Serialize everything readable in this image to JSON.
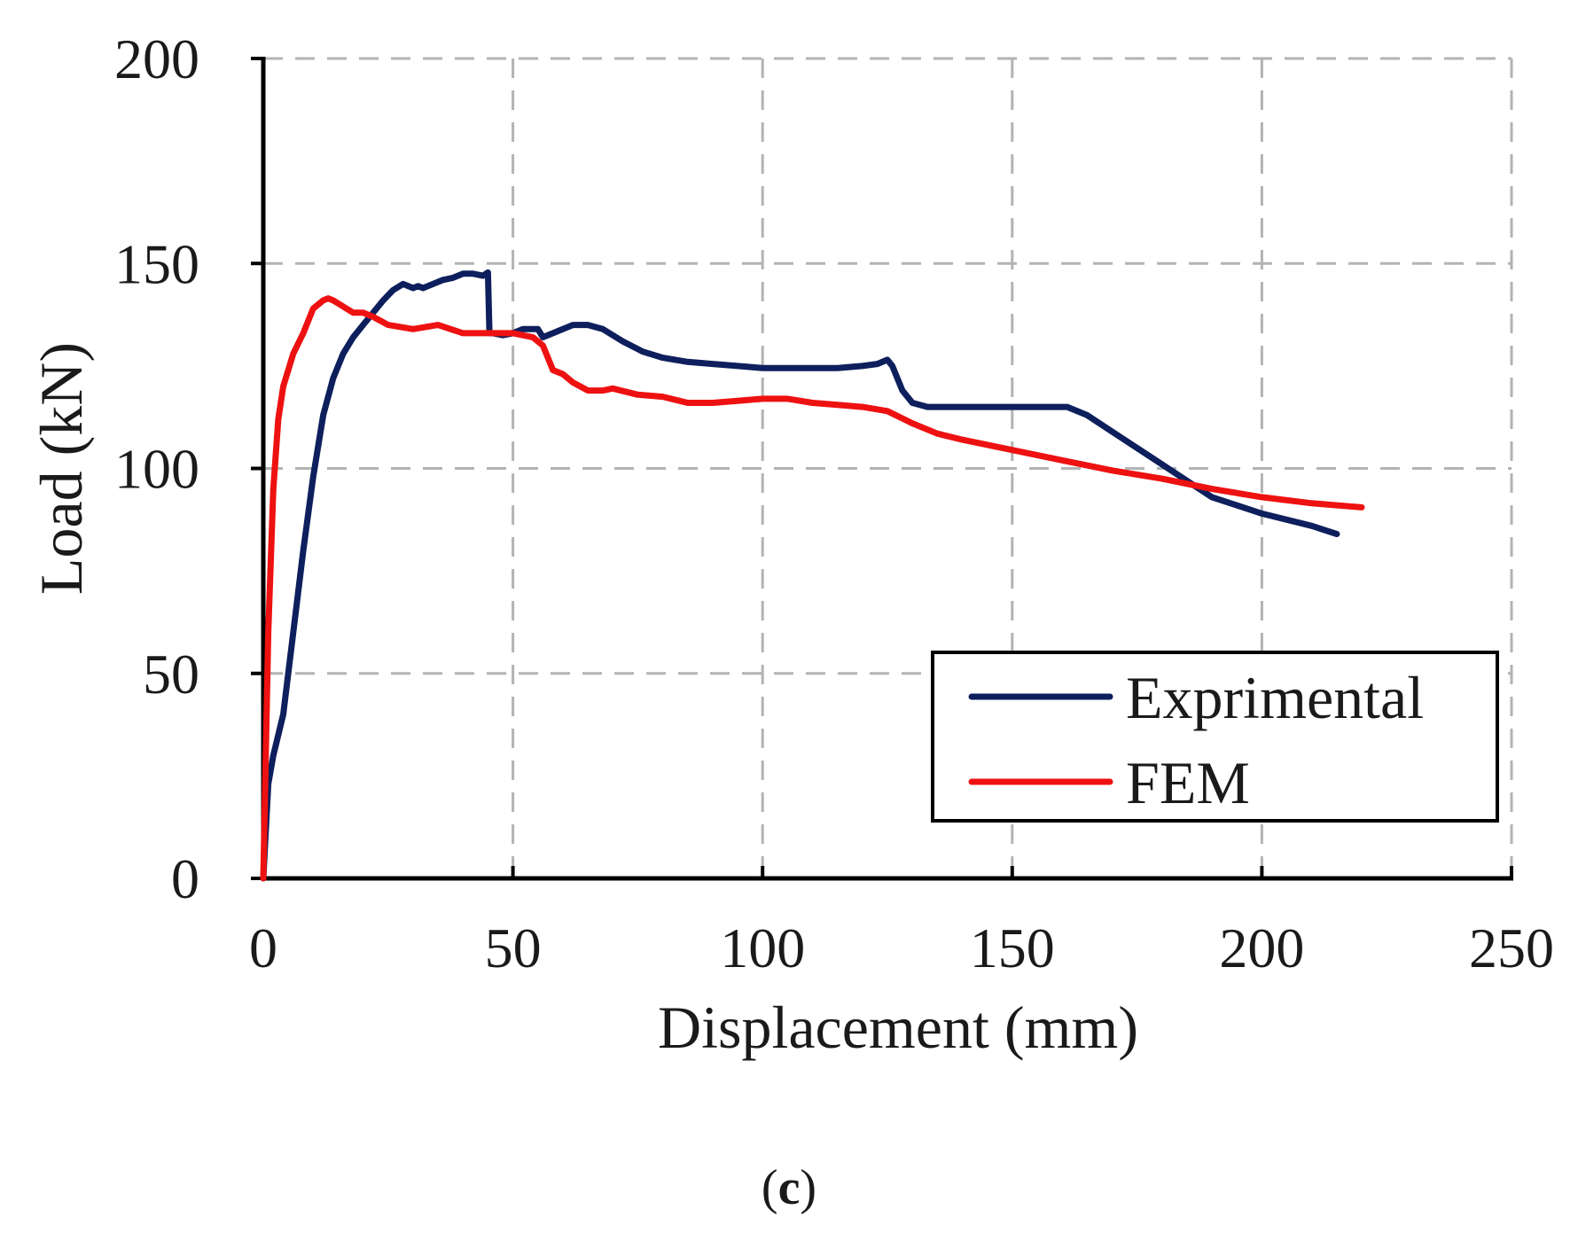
{
  "chart_data": {
    "type": "line",
    "title": "",
    "xlabel": "Displacement (mm)",
    "ylabel": "Load (kN)",
    "xlim": [
      0,
      250
    ],
    "ylim": [
      0,
      200
    ],
    "xticks": [
      0,
      50,
      100,
      150,
      200,
      250
    ],
    "yticks": [
      0,
      50,
      100,
      150,
      200
    ],
    "grid": true,
    "legend_position": "bottom-right",
    "series": [
      {
        "name": "Exprimental",
        "color": "#0d1f5c",
        "x": [
          0,
          1,
          2,
          4,
          6,
          8,
          10,
          12,
          14,
          16,
          18,
          20,
          22,
          24,
          26,
          28,
          30,
          31,
          32,
          34,
          36,
          38,
          40,
          42,
          44,
          45,
          45.3,
          46,
          48,
          50,
          52,
          54,
          55,
          56,
          58,
          60,
          62,
          65,
          68,
          72,
          76,
          80,
          85,
          90,
          95,
          100,
          105,
          110,
          115,
          120,
          123,
          125,
          126,
          128,
          130,
          133,
          140,
          150,
          160,
          161,
          165,
          170,
          175,
          180,
          185,
          190,
          200,
          210,
          215
        ],
        "y": [
          0,
          23,
          30,
          40,
          60,
          80,
          98,
          113,
          122,
          128,
          132,
          135,
          138,
          141,
          143.5,
          145,
          144,
          144.5,
          144,
          145,
          146,
          146.5,
          147.5,
          147.5,
          147,
          147.8,
          133,
          133,
          132.5,
          133,
          134,
          134,
          134,
          132,
          133,
          134,
          135,
          135,
          134,
          131,
          128.5,
          127,
          126,
          125.5,
          125,
          124.5,
          124.5,
          124.5,
          124.5,
          125,
          125.5,
          126.5,
          125,
          119,
          116,
          115,
          115,
          115,
          115,
          115,
          113,
          109,
          105,
          101,
          97,
          93,
          89,
          86,
          84
        ]
      },
      {
        "name": "FEM",
        "color": "#ee1111",
        "x": [
          0,
          1,
          2,
          3,
          4,
          6,
          8,
          10,
          12,
          13,
          14,
          16,
          18,
          20,
          22,
          25,
          30,
          35,
          40,
          45,
          50,
          54,
          56,
          58,
          60,
          62,
          65,
          68,
          70,
          75,
          80,
          85,
          90,
          95,
          100,
          105,
          110,
          115,
          120,
          125,
          130,
          135,
          140,
          150,
          160,
          170,
          180,
          190,
          200,
          210,
          220
        ],
        "y": [
          0,
          60,
          95,
          112,
          120,
          128,
          133,
          139,
          141,
          141.5,
          141,
          139.5,
          138,
          138,
          137,
          135,
          134,
          135,
          133,
          133,
          133,
          132,
          130,
          124,
          123,
          121,
          119,
          119,
          119.5,
          118,
          117.5,
          116,
          116,
          116.5,
          117,
          117,
          116,
          115.5,
          115,
          114,
          111,
          108.5,
          107,
          104.5,
          102,
          99.5,
          97.5,
          95,
          93,
          91.5,
          90.5
        ]
      }
    ]
  },
  "caption": {
    "open": "(",
    "letter": "c",
    "close": ")"
  }
}
